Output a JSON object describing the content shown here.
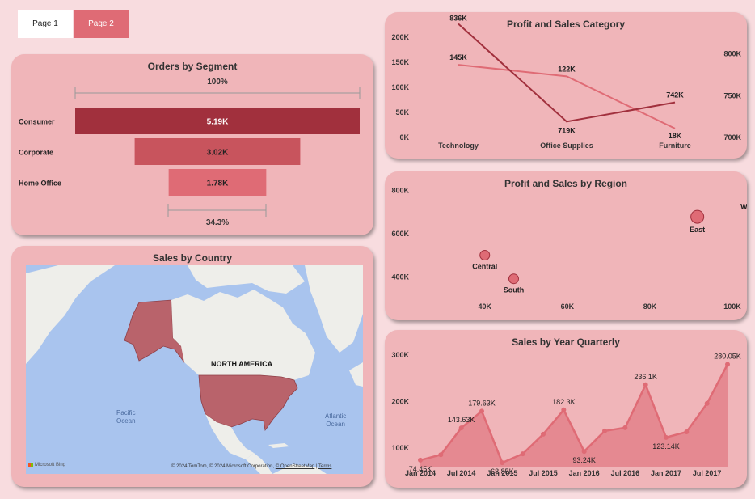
{
  "tabs": [
    {
      "label": "Page 1",
      "active": false
    },
    {
      "label": "Page 2",
      "active": true
    }
  ],
  "colors": {
    "background": "#f8dcdf",
    "card": "#f0b5b9",
    "dark_red": "#a1303d",
    "mid_red": "#c8545d",
    "light_red": "#df6b75",
    "map_water": "#a9c4ee",
    "map_land": "#eeeeea",
    "map_highlight": "#b9636b"
  },
  "segment": {
    "title": "Orders by Segment",
    "top_percent": "100%",
    "bottom_percent": "34.3%",
    "chart_data": {
      "type": "funnel",
      "categories": [
        "Consumer",
        "Corporate",
        "Home Office"
      ],
      "values": [
        5190,
        3020,
        1780
      ],
      "labels": [
        "5.19K",
        "3.02K",
        "1.78K"
      ]
    }
  },
  "country": {
    "title": "Sales by Country",
    "region_label": "NORTH AMERICA",
    "ocean_labels": [
      {
        "line1": "Pacific",
        "line2": "Ocean"
      },
      {
        "line1": "Atlantic",
        "line2": "Ocean"
      }
    ],
    "logo": "Microsoft Bing",
    "attribution_prefix": "© 2024 TomTom, © 2024 Microsoft Corporation, ",
    "attribution_link": "© OpenStreetMap",
    "terms": "Terms",
    "highlighted_countries": [
      "United States"
    ]
  },
  "category": {
    "title": "Profit and Sales Category",
    "chart_data": {
      "type": "line",
      "categories": [
        "Technology",
        "Office Supplies",
        "Furniture"
      ],
      "left_ticks": [
        "200K",
        "150K",
        "100K",
        "50K",
        "0K"
      ],
      "right_ticks": [
        "800K",
        "750K",
        "700K"
      ],
      "y_left_lim": [
        0,
        200000
      ],
      "y_right_lim": [
        700000,
        820000
      ],
      "series": [
        {
          "values": [
            145000,
            122000,
            18000
          ],
          "labels": [
            "145K",
            "122K",
            "18K"
          ],
          "axis": "left",
          "color": "#df6b75"
        },
        {
          "values": [
            836000,
            719000,
            742000
          ],
          "labels": [
            "836K",
            "719K",
            "742K"
          ],
          "axis": "right",
          "color": "#a1303d"
        }
      ]
    }
  },
  "region": {
    "title": "Profit and Sales by Region",
    "chart_data": {
      "type": "scatter",
      "x_ticks": [
        "40K",
        "60K",
        "80K",
        "100K"
      ],
      "y_ticks": [
        "800K",
        "600K",
        "400K"
      ],
      "xlim": [
        33000,
        109000
      ],
      "ylim": [
        320000,
        850000
      ],
      "points": [
        {
          "label": "Central",
          "x": 40000,
          "y": 501000
        },
        {
          "label": "South",
          "x": 47000,
          "y": 392000
        },
        {
          "label": "East",
          "x": 91500,
          "y": 678000
        },
        {
          "label": "West",
          "x": 108500,
          "y": 725000
        }
      ]
    }
  },
  "quarterly": {
    "title": "Sales by Year Quarterly",
    "chart_data": {
      "type": "area",
      "x_ticks": [
        "Jan 2014",
        "Jul 2014",
        "Jan 2015",
        "Jul 2015",
        "Jan 2016",
        "Jul 2016",
        "Jan 2017",
        "Jul 2017"
      ],
      "y_ticks": [
        "300K",
        "200K",
        "100K"
      ],
      "ylim": [
        50000,
        300000
      ],
      "values": [
        74450,
        86000,
        143630,
        179630,
        68850,
        88000,
        130000,
        182300,
        93240,
        137000,
        144000,
        236100,
        123140,
        135000,
        196000,
        280050
      ],
      "labels": [
        "74.45K",
        "",
        "143.63K",
        "179.63K",
        "68.85K",
        "",
        "",
        "182.3K",
        "93.24K",
        "",
        "",
        "236.1K",
        "123.14K",
        "",
        "",
        "280.05K"
      ]
    }
  }
}
